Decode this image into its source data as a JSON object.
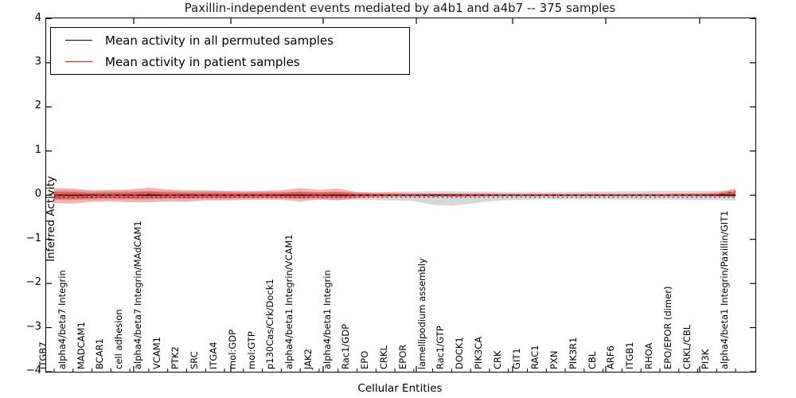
{
  "title": "Paxillin-independent events mediated by a4b1 and a4b7 -- 375 samples",
  "legend": {
    "items": [
      {
        "label": "Mean activity in all permuted samples",
        "color": "#000000"
      },
      {
        "label": "Mean activity in patient samples",
        "color": "#ff0000"
      }
    ]
  },
  "colors": {
    "permuted_line": "#000000",
    "patient_line": "#ee1c1c",
    "permuted_band": "rgba(130,130,130,0.32)",
    "patient_band_outer": "rgba(233,88,88,0.45)",
    "patient_band_inner": "rgba(220,40,40,0.50)",
    "axis": "#000000"
  },
  "chart_data": {
    "type": "line",
    "title": "Paxillin-independent events mediated by a4b1 and a4b7 -- 375 samples",
    "xlabel": "Cellular Entities",
    "ylabel": "Inferred Activity",
    "ylim": [
      -4,
      4
    ],
    "ytick_labels": [
      "4",
      "3",
      "2",
      "1",
      "0",
      "−1",
      "−2",
      "−3",
      "−4"
    ],
    "ytick_values": [
      4,
      3,
      2,
      1,
      0,
      -1,
      -2,
      -3,
      -4
    ],
    "grid": false,
    "legend_position": "upper left",
    "categories": [
      "ITGB7",
      "alpha4/beta7 Integrin",
      "MADCAM1",
      "BCAR1",
      "cell adhesion",
      "alpha4/beta7 Integrin/MAdCAM1",
      "VCAM1",
      "PTK2",
      "SRC",
      "ITGA4",
      "mol:GDP",
      "mol:GTP",
      "p130Cas/Crk/Dock1",
      "alpha4/beta1 Integrin/VCAM1",
      "JAK2",
      "alpha4/beta1 Integrin",
      "Rac1/GDP",
      "EPO",
      "CRKL",
      "EPOR",
      "lamellipodium assembly",
      "Rac1/GTP",
      "DOCK1",
      "PIK3CA",
      "CRK",
      "GIT1",
      "RAC1",
      "PXN",
      "PIK3R1",
      "CBL",
      "ARF6",
      "ITGB1",
      "RHOA",
      "EPO/EPOR (dimer)",
      "CRKL/CBL",
      "PI3K",
      "alpha4/beta1 Integrin/Paxillin/GIT1"
    ],
    "series": [
      {
        "name": "Mean activity in all permuted samples",
        "style": "solid",
        "values": [
          0,
          0,
          0,
          0,
          0,
          0,
          0,
          0,
          0,
          0,
          0,
          0,
          0,
          0,
          0,
          0,
          0,
          0,
          0,
          0,
          0,
          0,
          0,
          0,
          0,
          0,
          0,
          0,
          0,
          0,
          0,
          0,
          0,
          0,
          0,
          0,
          0
        ]
      },
      {
        "name": "Mean activity in patient samples",
        "style": "dashed",
        "values": [
          -0.01,
          -0.02,
          -0.01,
          0,
          -0.01,
          0.03,
          0,
          -0.01,
          0,
          0,
          0,
          0,
          0.01,
          0.02,
          0,
          0.02,
          0,
          0,
          0,
          0,
          -0.01,
          -0.01,
          0,
          0,
          0,
          0,
          0,
          0,
          0,
          0,
          0,
          0,
          0,
          0,
          0,
          0.01,
          0.08
        ]
      }
    ],
    "bands": [
      {
        "name": "permuted samples range",
        "upper": [
          0.11,
          0.11,
          0.1,
          0.1,
          0.1,
          0.1,
          0.09,
          0.09,
          0.09,
          0.09,
          0.08,
          0.08,
          0.08,
          0.08,
          0.07,
          0.08,
          0.07,
          0.07,
          0.08,
          0.08,
          0.09,
          0.09,
          0.08,
          0.08,
          0.07,
          0.07,
          0.07,
          0.07,
          0.08,
          0.08,
          0.09,
          0.09,
          0.1,
          0.1,
          0.1,
          0.1,
          0.11
        ],
        "lower": [
          -0.11,
          -0.11,
          -0.1,
          -0.1,
          -0.1,
          -0.1,
          -0.09,
          -0.09,
          -0.09,
          -0.09,
          -0.08,
          -0.08,
          -0.08,
          -0.09,
          -0.09,
          -0.1,
          -0.1,
          -0.11,
          -0.12,
          -0.13,
          -0.22,
          -0.24,
          -0.19,
          -0.14,
          -0.11,
          -0.1,
          -0.09,
          -0.09,
          -0.09,
          -0.09,
          -0.1,
          -0.1,
          -0.1,
          -0.1,
          -0.11,
          -0.11,
          -0.12
        ]
      },
      {
        "name": "patient samples range",
        "upper": [
          0.16,
          0.15,
          0.11,
          0.12,
          0.13,
          0.17,
          0.13,
          0.11,
          0.11,
          0.1,
          0.09,
          0.1,
          0.11,
          0.16,
          0.12,
          0.15,
          0.07,
          0.05,
          0.05,
          0.04,
          0.04,
          0.04,
          0.04,
          0.04,
          0.03,
          0.03,
          0.03,
          0.03,
          0.03,
          0.03,
          0.03,
          0.03,
          0.03,
          0.04,
          0.04,
          0.06,
          0.15
        ],
        "lower": [
          -0.18,
          -0.19,
          -0.15,
          -0.14,
          -0.16,
          -0.16,
          -0.14,
          -0.15,
          -0.12,
          -0.12,
          -0.11,
          -0.1,
          -0.11,
          -0.14,
          -0.1,
          -0.12,
          -0.07,
          -0.05,
          -0.04,
          -0.04,
          -0.04,
          -0.04,
          -0.04,
          -0.03,
          -0.03,
          -0.03,
          -0.03,
          -0.03,
          -0.03,
          -0.03,
          -0.03,
          -0.03,
          -0.03,
          -0.03,
          -0.03,
          -0.04,
          -0.05
        ]
      }
    ]
  }
}
